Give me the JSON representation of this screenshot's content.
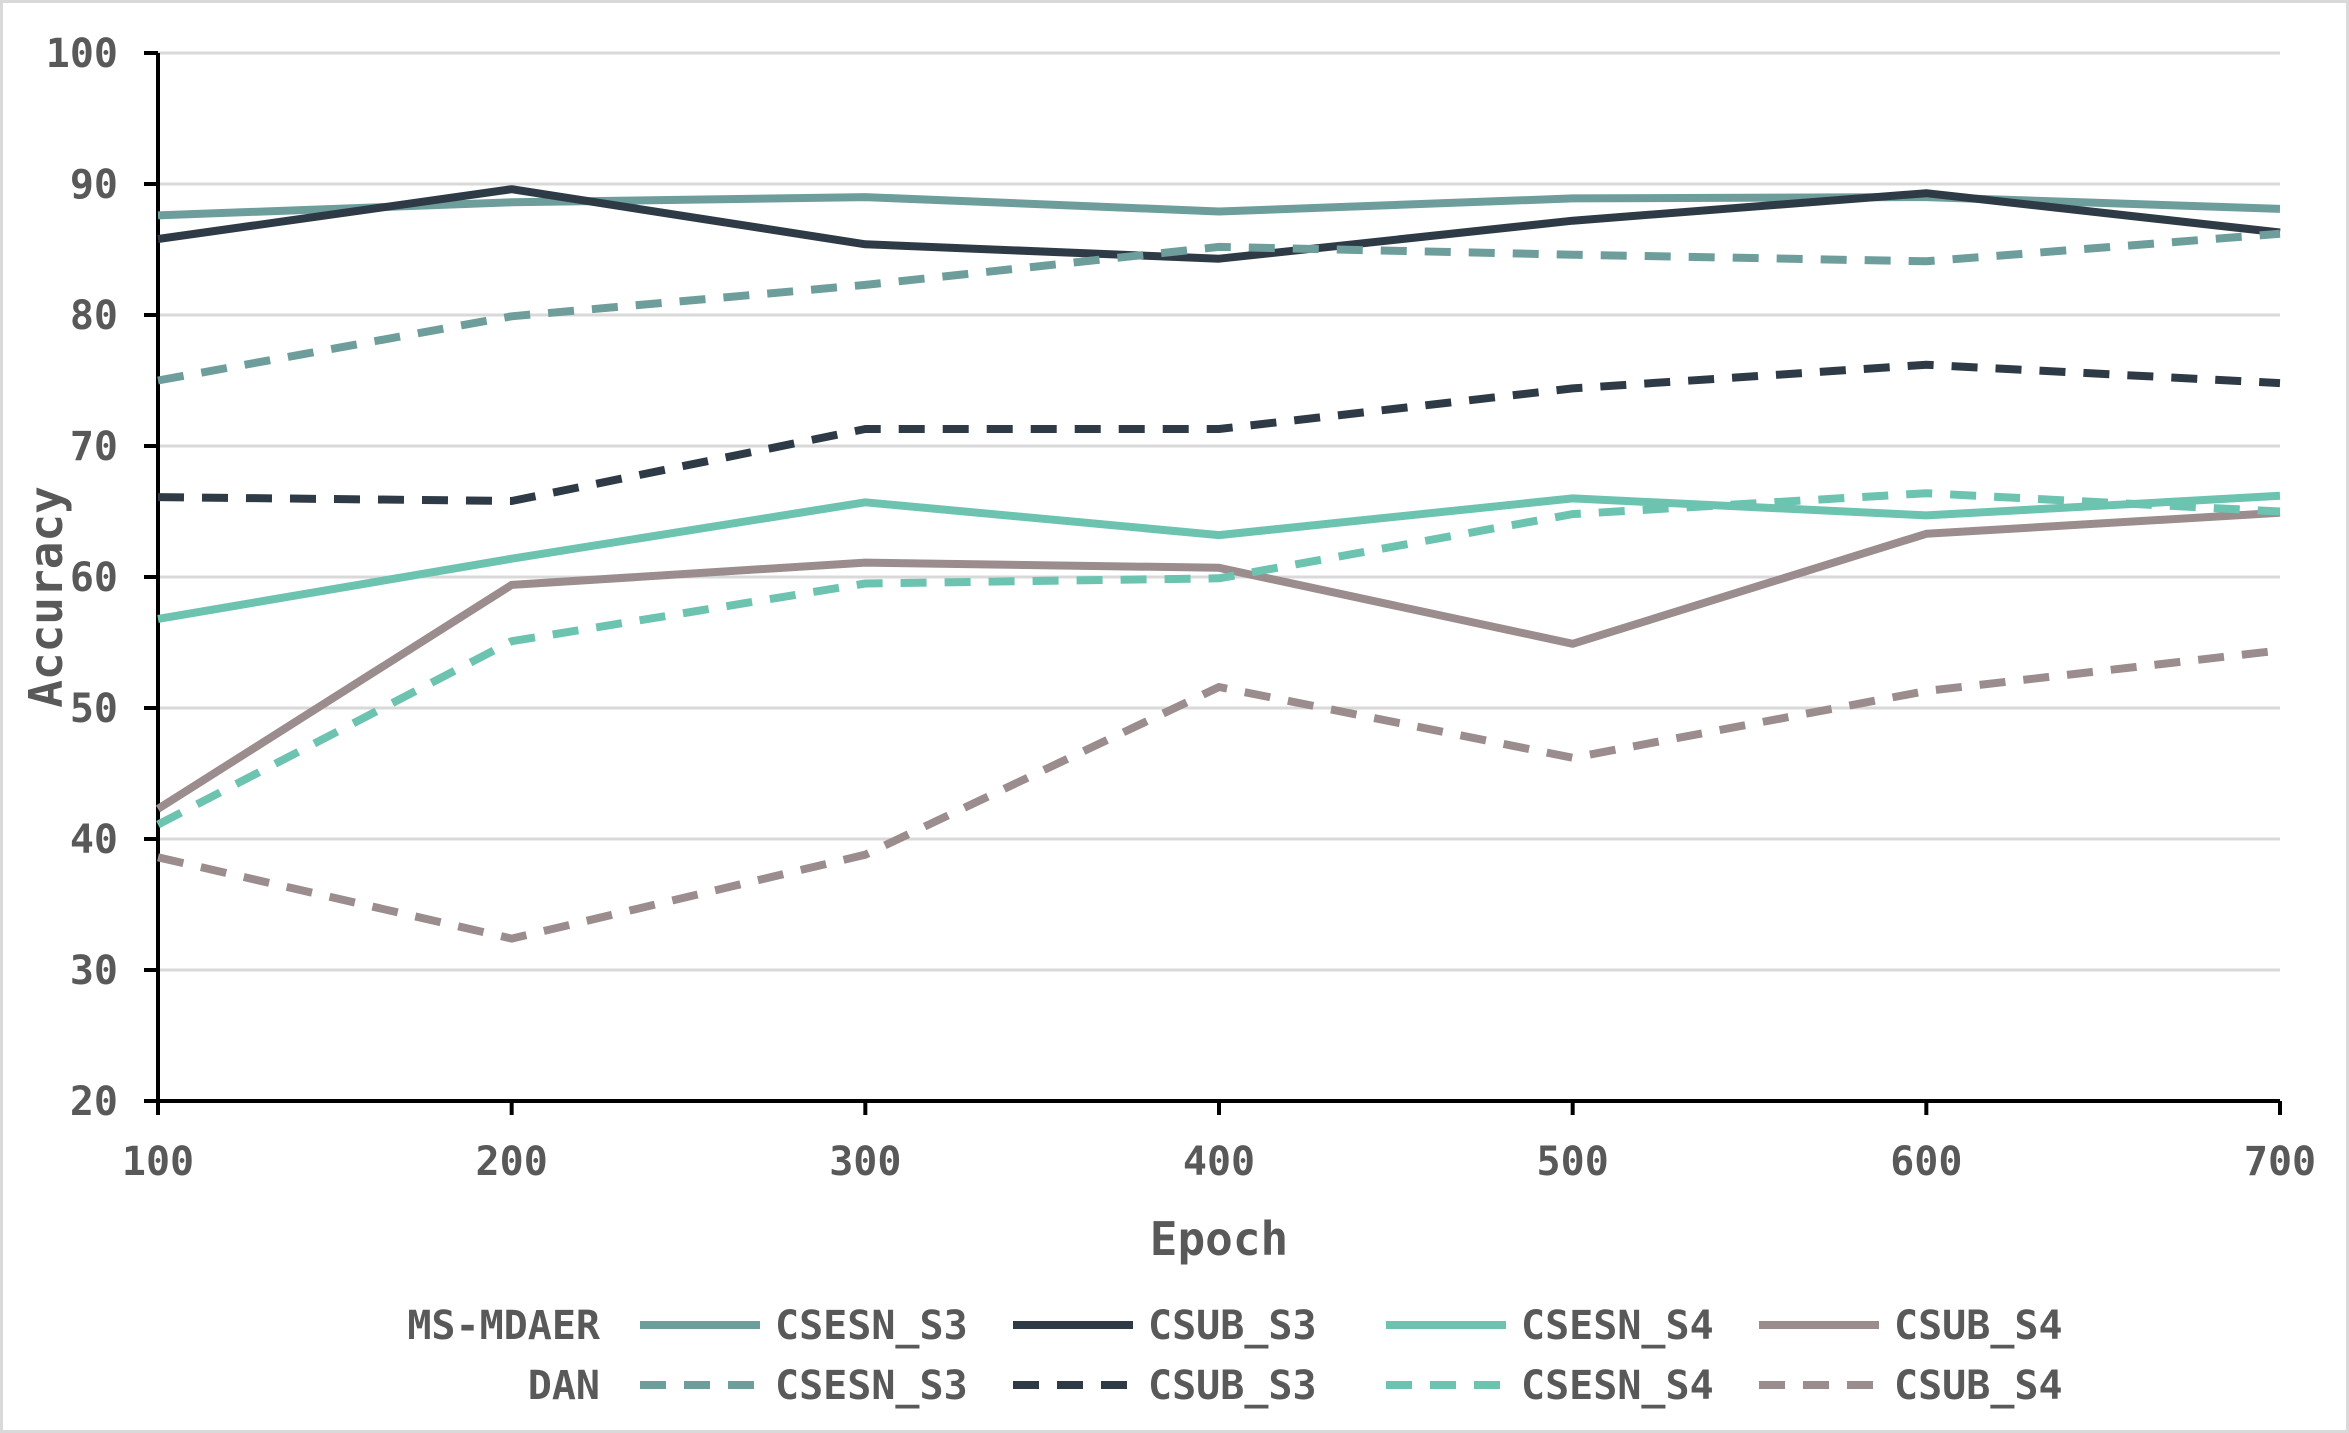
{
  "chart_data": {
    "type": "line",
    "title": "",
    "xlabel": "Epoch",
    "ylabel": "Accuracy",
    "x": [
      100,
      200,
      300,
      400,
      500,
      600,
      700
    ],
    "xlim": [
      100,
      700
    ],
    "ylim": [
      20,
      100
    ],
    "yticks": [
      20,
      30,
      40,
      50,
      60,
      70,
      80,
      90,
      100
    ],
    "grid": true,
    "legend_position": "bottom",
    "legend_groups": [
      {
        "label": "MS-MDAER",
        "style": "solid"
      },
      {
        "label": "DAN",
        "style": "dashed"
      }
    ],
    "series": [
      {
        "name": "CSESN_S3",
        "group": "MS-MDAER",
        "style": "solid",
        "color": "#6e9e9b",
        "values": [
          87.6,
          88.6,
          89.0,
          87.9,
          88.9,
          89.0,
          88.1
        ]
      },
      {
        "name": "CSUB_S3",
        "group": "MS-MDAER",
        "style": "solid",
        "color": "#2e3b46",
        "values": [
          85.8,
          89.6,
          85.4,
          84.3,
          87.2,
          89.3,
          86.3
        ]
      },
      {
        "name": "CSESN_S4",
        "group": "MS-MDAER",
        "style": "solid",
        "color": "#6cc3b0",
        "values": [
          56.8,
          61.4,
          65.7,
          63.2,
          66.0,
          64.7,
          66.2
        ]
      },
      {
        "name": "CSUB_S4",
        "group": "MS-MDAER",
        "style": "solid",
        "color": "#9b8c8e",
        "values": [
          42.3,
          59.4,
          61.1,
          60.7,
          54.9,
          63.3,
          64.9
        ]
      },
      {
        "name": "CSESN_S3",
        "group": "DAN",
        "style": "dashed",
        "color": "#6e9e9b",
        "values": [
          75.0,
          79.9,
          82.3,
          85.2,
          84.6,
          84.1,
          86.2
        ]
      },
      {
        "name": "CSUB_S3",
        "group": "DAN",
        "style": "dashed",
        "color": "#2e3b46",
        "values": [
          66.1,
          65.8,
          71.3,
          71.3,
          74.4,
          76.2,
          74.8
        ]
      },
      {
        "name": "CSESN_S4",
        "group": "DAN",
        "style": "dashed",
        "color": "#6cc3b0",
        "values": [
          41.1,
          55.1,
          59.5,
          59.9,
          64.8,
          66.4,
          65.0
        ]
      },
      {
        "name": "CSUB_S4",
        "group": "DAN",
        "style": "dashed",
        "color": "#9b8c8e",
        "values": [
          38.6,
          32.4,
          38.8,
          51.6,
          46.2,
          51.3,
          54.4
        ]
      }
    ]
  }
}
